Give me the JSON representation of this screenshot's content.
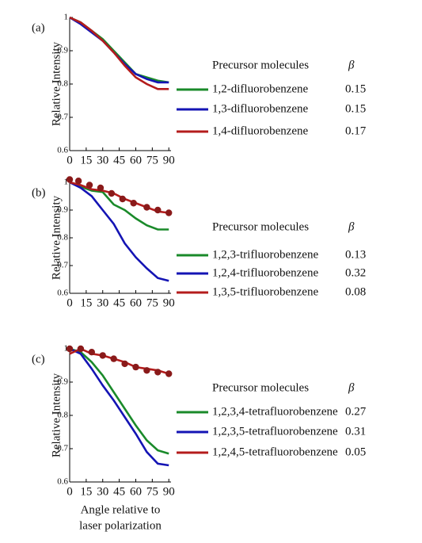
{
  "chart_data": [
    {
      "type": "line",
      "label": "(a)",
      "ylabel": "Relative Intensity",
      "x": [
        0,
        10,
        20,
        30,
        40,
        50,
        60,
        70,
        80,
        90
      ],
      "xlim": [
        0,
        92
      ],
      "xticks": [
        0,
        15,
        30,
        45,
        60,
        75,
        90
      ],
      "ylim": [
        0.6,
        1
      ],
      "yticks": [
        0.6,
        0.7,
        0.8,
        0.9,
        1
      ],
      "legend_title": "Precursor molecules",
      "beta_label": "β",
      "series": [
        {
          "name": "1,2-difluorobenzene",
          "color": "#1a8a2a",
          "beta": 0.15,
          "values": [
            1,
            0.985,
            0.96,
            0.935,
            0.9,
            0.865,
            0.83,
            0.82,
            0.81,
            0.805
          ]
        },
        {
          "name": "1,3-difluorobenzene",
          "color": "#1414b4",
          "beta": 0.15,
          "values": [
            1,
            0.98,
            0.955,
            0.93,
            0.895,
            0.86,
            0.83,
            0.815,
            0.805,
            0.805
          ]
        },
        {
          "name": "1,4-difluorobenzene",
          "color": "#b41c1c",
          "beta": 0.17,
          "values": [
            1,
            0.985,
            0.96,
            0.93,
            0.895,
            0.855,
            0.82,
            0.8,
            0.785,
            0.785
          ]
        }
      ]
    },
    {
      "type": "line",
      "label": "(b)",
      "ylabel": "Relative Intensity",
      "x": [
        0,
        10,
        20,
        30,
        40,
        50,
        60,
        70,
        80,
        90
      ],
      "xlim": [
        0,
        92
      ],
      "xticks": [
        0,
        15,
        30,
        45,
        60,
        75,
        90
      ],
      "ylim": [
        0.6,
        1
      ],
      "yticks": [
        0.6,
        0.7,
        0.8,
        0.9,
        1
      ],
      "legend_title": "Precursor molecules",
      "beta_label": "β",
      "series": [
        {
          "name": "1,2,3-trifluorobenzene",
          "color": "#1a8a2a",
          "beta": 0.13,
          "values": [
            1,
            0.985,
            0.97,
            0.965,
            0.92,
            0.9,
            0.87,
            0.845,
            0.83,
            0.83
          ]
        },
        {
          "name": "1,2,4-trifluorobenzene",
          "color": "#1414b4",
          "beta": 0.32,
          "values": [
            1,
            0.98,
            0.95,
            0.9,
            0.85,
            0.78,
            0.73,
            0.69,
            0.655,
            0.645
          ]
        },
        {
          "name": "1,3,5-trifluorobenzene",
          "color": "#b41c1c",
          "beta": 0.08,
          "values": [
            1,
            0.99,
            0.975,
            0.97,
            0.96,
            0.94,
            0.925,
            0.91,
            0.895,
            0.89
          ],
          "measured": {
            "x": [
              0,
              8,
              18,
              28,
              38,
              48,
              58,
              70,
              80,
              90
            ],
            "values": [
              1.01,
              1.005,
              0.99,
              0.98,
              0.96,
              0.94,
              0.925,
              0.91,
              0.9,
              0.89
            ]
          }
        }
      ]
    },
    {
      "type": "line",
      "label": "(c)",
      "ylabel": "Relative Intensity",
      "xlabel": [
        "Angle relative to",
        "laser polarization"
      ],
      "x": [
        0,
        10,
        20,
        30,
        40,
        50,
        60,
        70,
        80,
        90
      ],
      "xlim": [
        0,
        92
      ],
      "xticks": [
        0,
        15,
        30,
        45,
        60,
        75,
        90
      ],
      "ylim": [
        0.6,
        1
      ],
      "yticks": [
        0.6,
        0.7,
        0.8,
        0.9,
        1
      ],
      "legend_title": "Precursor molecules",
      "beta_label": "β",
      "series": [
        {
          "name": "1,2,3,4-tetrafluorobenzene",
          "color": "#1a8a2a",
          "beta": 0.27,
          "values": [
            1,
            0.99,
            0.96,
            0.92,
            0.87,
            0.82,
            0.77,
            0.725,
            0.695,
            0.685
          ]
        },
        {
          "name": "1,2,3,5-tetrafluorobenzene",
          "color": "#1414b4",
          "beta": 0.31,
          "values": [
            1,
            0.985,
            0.94,
            0.89,
            0.845,
            0.795,
            0.745,
            0.69,
            0.655,
            0.65
          ]
        },
        {
          "name": "1,2,4,5-tetrafluorobenzene",
          "color": "#b41c1c",
          "beta": 0.05,
          "values": [
            0.985,
            1,
            0.985,
            0.98,
            0.97,
            0.96,
            0.945,
            0.94,
            0.935,
            0.925
          ],
          "measured": {
            "x": [
              0,
              10,
              20,
              30,
              40,
              50,
              60,
              70,
              80,
              90
            ],
            "values": [
              1,
              1,
              0.99,
              0.98,
              0.97,
              0.955,
              0.945,
              0.935,
              0.93,
              0.925
            ]
          }
        }
      ]
    }
  ]
}
